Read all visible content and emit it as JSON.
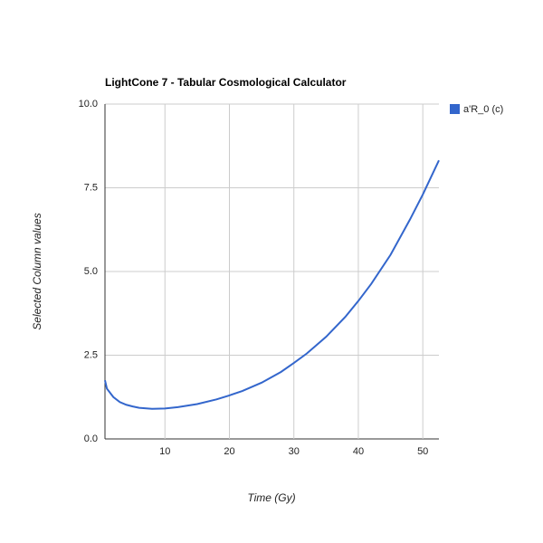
{
  "chart_data": {
    "type": "line",
    "title": "LightCone 7 - Tabular Cosmological Calculator",
    "x_label": "Time (Gy)",
    "y_label": "Selected Column values",
    "x": [
      0.7,
      1,
      2,
      3,
      4,
      5,
      6,
      8,
      10,
      12,
      15,
      18,
      20,
      22,
      25,
      28,
      30,
      32,
      35,
      38,
      40,
      42,
      45,
      48,
      50,
      52.5
    ],
    "series": [
      {
        "name": "a'R_0 (c)",
        "color": "#3366cc",
        "values": [
          1.75,
          1.5,
          1.25,
          1.1,
          1.02,
          0.97,
          0.93,
          0.9,
          0.91,
          0.95,
          1.04,
          1.18,
          1.3,
          1.43,
          1.68,
          2.0,
          2.27,
          2.55,
          3.05,
          3.65,
          4.12,
          4.63,
          5.5,
          6.55,
          7.3,
          8.32
        ]
      }
    ],
    "xlim": [
      0.7,
      52.5
    ],
    "xticks": [
      10,
      20,
      30,
      40,
      50
    ],
    "ylim": [
      0,
      10
    ],
    "yticks": [
      {
        "value": 0,
        "label": "0.0"
      },
      {
        "value": 2.5,
        "label": "2.5"
      },
      {
        "value": 5,
        "label": "5.0"
      },
      {
        "value": 7.5,
        "label": "7.5"
      },
      {
        "value": 10,
        "label": "10.0"
      }
    ],
    "grid": true,
    "legend": "right"
  }
}
